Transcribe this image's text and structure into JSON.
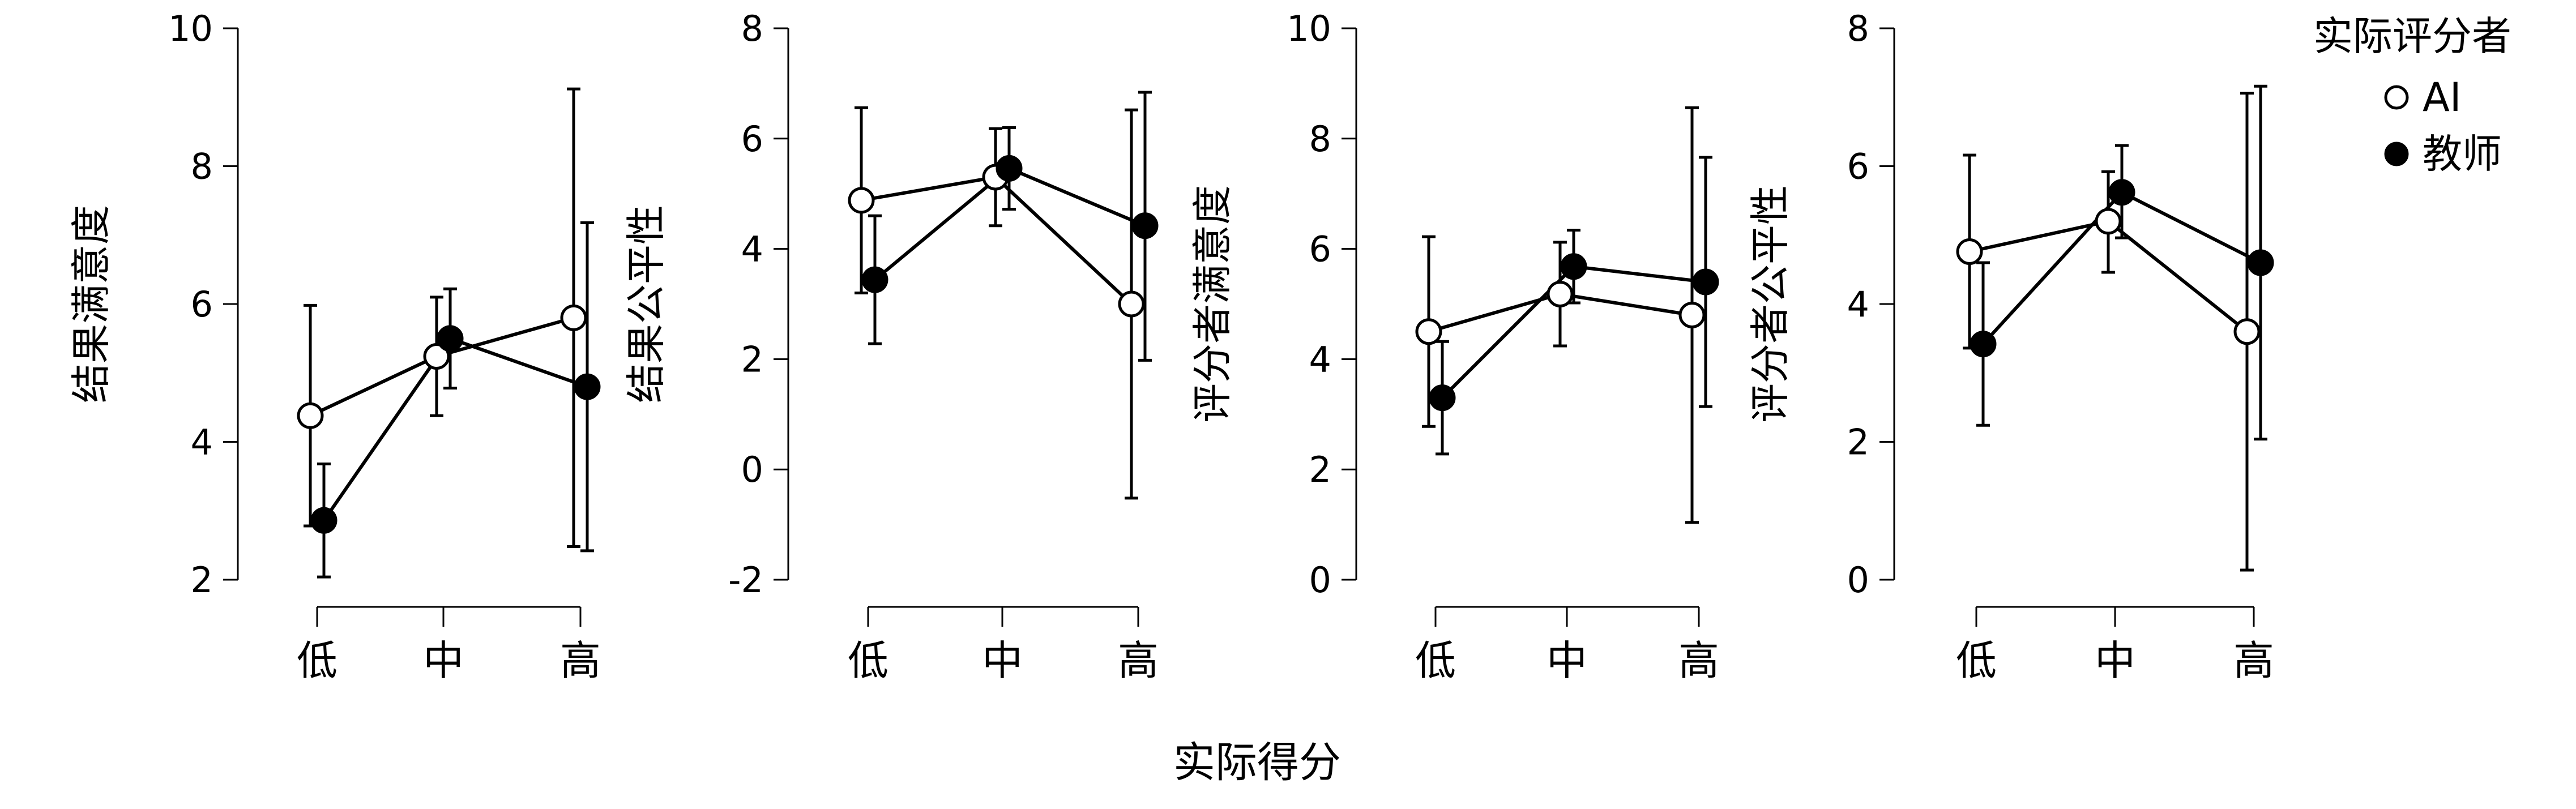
{
  "figure": {
    "xlabel": "实际得分",
    "legend": {
      "title": "实际评分者",
      "items": [
        {
          "name": "AI",
          "marker": "open-circle"
        },
        {
          "name": "教师",
          "marker": "filled-circle"
        }
      ]
    }
  },
  "chart_data": [
    {
      "type": "line",
      "ylabel": "结果满意度",
      "categories": [
        "低",
        "中",
        "高"
      ],
      "ylim": [
        2,
        10
      ],
      "yticks": [
        2,
        4,
        6,
        8,
        10
      ],
      "legend_position": "top-right",
      "series": [
        {
          "name": "AI",
          "values": [
            4.38,
            5.24,
            5.8
          ],
          "err_low": [
            2.78,
            4.38,
            2.48
          ],
          "err_high": [
            5.98,
            6.1,
            9.12
          ]
        },
        {
          "name": "教师",
          "values": [
            2.86,
            5.5,
            4.8
          ],
          "err_low": [
            2.04,
            4.78,
            2.42
          ],
          "err_high": [
            3.68,
            6.22,
            7.18
          ]
        }
      ]
    },
    {
      "type": "line",
      "ylabel": "结果公平性",
      "categories": [
        "低",
        "中",
        "高"
      ],
      "ylim": [
        -2,
        8
      ],
      "yticks": [
        -2,
        0,
        2,
        4,
        6,
        8
      ],
      "series": [
        {
          "name": "AI",
          "values": [
            4.88,
            5.3,
            3.0
          ],
          "err_low": [
            3.2,
            4.42,
            -0.52
          ],
          "err_high": [
            6.56,
            6.18,
            6.52
          ]
        },
        {
          "name": "教师",
          "values": [
            3.44,
            5.46,
            4.42
          ],
          "err_low": [
            2.28,
            4.72,
            1.98
          ],
          "err_high": [
            4.6,
            6.2,
            6.84
          ]
        }
      ]
    },
    {
      "type": "line",
      "ylabel": "评分者满意度",
      "categories": [
        "低",
        "中",
        "高"
      ],
      "ylim": [
        0,
        10
      ],
      "yticks": [
        0,
        2,
        4,
        6,
        8,
        10
      ],
      "series": [
        {
          "name": "AI",
          "values": [
            4.5,
            5.18,
            4.8
          ],
          "err_low": [
            2.78,
            4.24,
            1.04
          ],
          "err_high": [
            6.22,
            6.12,
            8.56
          ]
        },
        {
          "name": "教师",
          "values": [
            3.3,
            5.68,
            5.4
          ],
          "err_low": [
            2.28,
            5.02,
            3.14
          ],
          "err_high": [
            4.32,
            6.34,
            7.66
          ]
        }
      ]
    },
    {
      "type": "line",
      "ylabel": "评分者公平性",
      "categories": [
        "低",
        "中",
        "高"
      ],
      "ylim": [
        0,
        8
      ],
      "yticks": [
        0,
        2,
        4,
        6,
        8
      ],
      "series": [
        {
          "name": "AI",
          "values": [
            4.76,
            5.2,
            3.6
          ],
          "err_low": [
            3.36,
            4.46,
            0.14
          ],
          "err_high": [
            6.16,
            5.92,
            7.06
          ]
        },
        {
          "name": "教师",
          "values": [
            3.42,
            5.62,
            4.6
          ],
          "err_low": [
            2.24,
            4.96,
            2.04
          ],
          "err_high": [
            4.6,
            6.3,
            7.16
          ]
        }
      ]
    }
  ]
}
